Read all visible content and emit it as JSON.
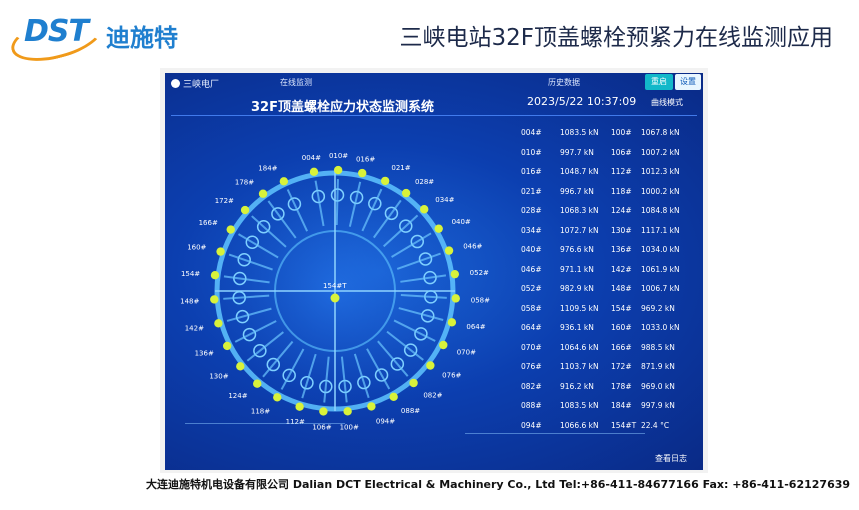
{
  "slide": {
    "logo_latin": "DST",
    "logo_cn": "迪施特",
    "title": "三峡电站32F顶盖螺栓预紧力在线监测应用",
    "footer": "大连迪施特机电设备有限公司 Dalian DCT Electrical & Machinery Co., Ltd Tel:+86-411-84677166 Fax: +86-411-62127639"
  },
  "app": {
    "brand": "三峡电厂",
    "nav_online": "在线监测",
    "nav_history": "历史数据",
    "btn_reset": "重启",
    "btn_settings": "设置",
    "system_title": "32F顶盖螺栓应力状态监测系统",
    "datetime": "2023/5/22 10:37:09",
    "curve_mode": "曲线模式",
    "view_log": "查看日志",
    "center_label": "154#T"
  },
  "dial_labels": [
    "004#",
    "010#",
    "016#",
    "021#",
    "028#",
    "034#",
    "040#",
    "046#",
    "052#",
    "058#",
    "064#",
    "070#",
    "076#",
    "082#",
    "088#",
    "094#",
    "100#",
    "106#",
    "112#",
    "118#",
    "124#",
    "130#",
    "136#",
    "142#",
    "148#",
    "154#",
    "160#",
    "166#",
    "172#",
    "178#",
    "184#"
  ],
  "readings": [
    [
      "004#",
      "1083.5 kN",
      "100#",
      "1067.8 kN"
    ],
    [
      "010#",
      "997.7 kN",
      "106#",
      "1007.2 kN"
    ],
    [
      "016#",
      "1048.7 kN",
      "112#",
      "1012.3 kN"
    ],
    [
      "021#",
      "996.7 kN",
      "118#",
      "1000.2 kN"
    ],
    [
      "028#",
      "1068.3 kN",
      "124#",
      "1084.8 kN"
    ],
    [
      "034#",
      "1072.7 kN",
      "130#",
      "1117.1 kN"
    ],
    [
      "040#",
      "976.6 kN",
      "136#",
      "1034.0 kN"
    ],
    [
      "046#",
      "971.1 kN",
      "142#",
      "1061.9 kN"
    ],
    [
      "052#",
      "982.9 kN",
      "148#",
      "1006.7 kN"
    ],
    [
      "058#",
      "1109.5 kN",
      "154#",
      "969.2 kN"
    ],
    [
      "064#",
      "936.1 kN",
      "160#",
      "1033.0 kN"
    ],
    [
      "070#",
      "1064.6 kN",
      "166#",
      "988.5 kN"
    ],
    [
      "076#",
      "1103.7 kN",
      "172#",
      "871.9 kN"
    ],
    [
      "082#",
      "916.2 kN",
      "178#",
      "969.0 kN"
    ],
    [
      "088#",
      "1083.5 kN",
      "184#",
      "997.9 kN"
    ],
    [
      "094#",
      "1066.6 kN",
      "154#T",
      "22.4 °C"
    ]
  ],
  "colors": {
    "screen_bg": "#0c3fb0",
    "bolt": "#d8f23a",
    "title": "#1d2a4a",
    "logo_blue": "#1f7fcf",
    "logo_orange": "#f09a1a"
  }
}
